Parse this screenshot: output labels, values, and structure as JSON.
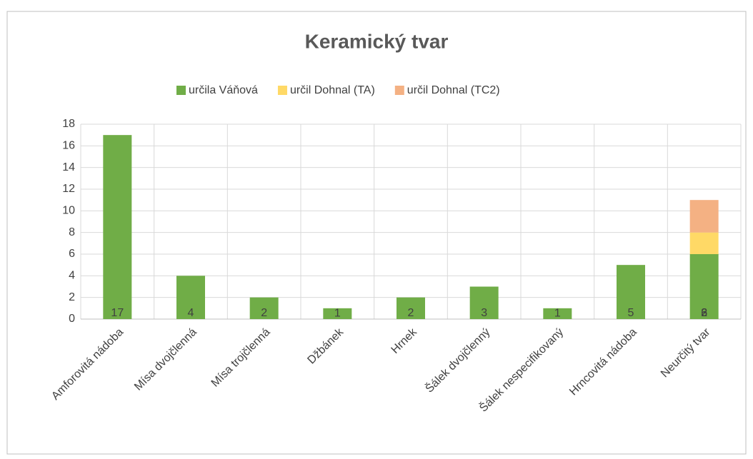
{
  "chart_data": {
    "type": "bar",
    "stacked": true,
    "title": "Keramický tvar",
    "categories": [
      "Amforovitá nádoba",
      "Mísa dvojčlenná",
      "Mísa trojčlenná",
      "Džbánek",
      "Hrnek",
      "Šálek dvojčlenný",
      "Šálek nespecifikovaný",
      "Hrncovitá nádoba",
      "Neurčitý tvar"
    ],
    "series": [
      {
        "name": "určila Váňová",
        "color": "#70ad47",
        "values": [
          17,
          4,
          2,
          1,
          2,
          3,
          1,
          5,
          6
        ]
      },
      {
        "name": "určil Dohnal (TA)",
        "color": "#ffd966",
        "values": [
          0,
          0,
          0,
          0,
          0,
          0,
          0,
          0,
          2
        ]
      },
      {
        "name": "určil Dohnal (TC2)",
        "color": "#f4b183",
        "values": [
          0,
          0,
          0,
          0,
          0,
          0,
          0,
          0,
          3
        ]
      }
    ],
    "ylim": [
      0,
      18
    ],
    "yticks": [
      0,
      2,
      4,
      6,
      8,
      10,
      12,
      14,
      16,
      18
    ],
    "grid": true,
    "legend": "top"
  }
}
